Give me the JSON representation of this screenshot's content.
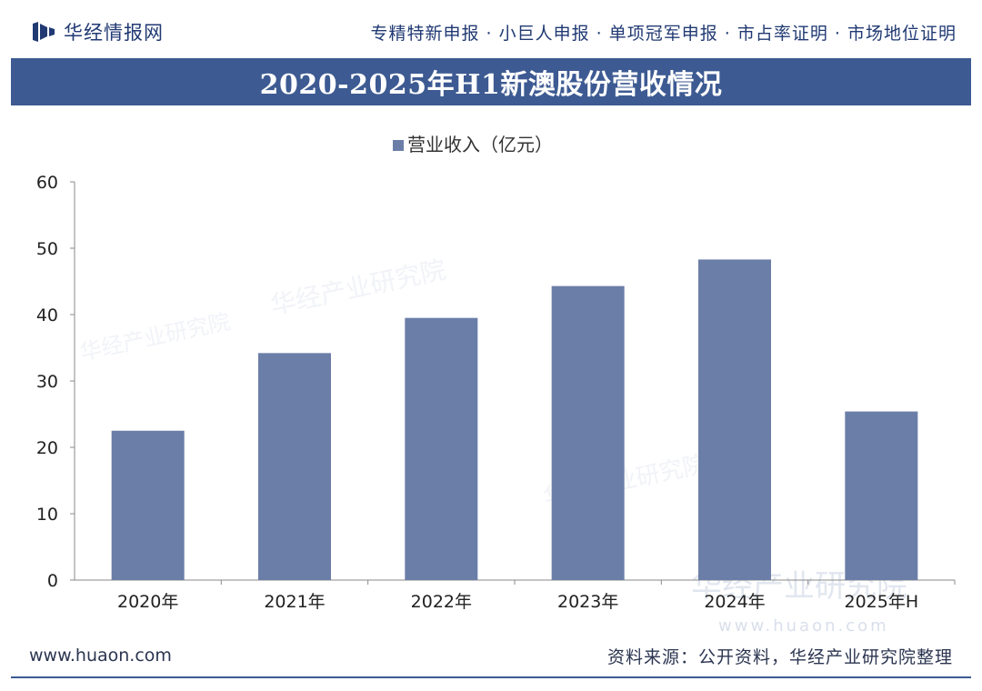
{
  "header": {
    "brand": "华经情报网",
    "services": "专精特新申报 · 小巨人申报 · 单项冠军申报 · 市占率证明 · 市场地位证明"
  },
  "footer": {
    "url": "www.huaon.com",
    "source": "资料来源：公开资料，华经产业研究院整理"
  },
  "watermark": {
    "name": "华经产业研究院",
    "url": "www.huaon.com"
  },
  "colors": {
    "bar": "#6b7ea8",
    "title_bg": "#3d5a92",
    "axis": "#888888"
  },
  "chart_data": {
    "type": "bar",
    "title": "2020-2025年H1新澳股份营收情况",
    "categories": [
      "2020年",
      "2021年",
      "2022年",
      "2023年",
      "2024年",
      "2025年H"
    ],
    "series": [
      {
        "name": "营业收入（亿元）",
        "values": [
          22.5,
          34.2,
          39.5,
          44.3,
          48.3,
          25.4
        ]
      }
    ],
    "ylim": [
      0,
      60
    ],
    "yticks": [
      0,
      10,
      20,
      30,
      40,
      50,
      60
    ],
    "xlabel": "",
    "ylabel": "",
    "legend": "top-center",
    "grid": false
  }
}
